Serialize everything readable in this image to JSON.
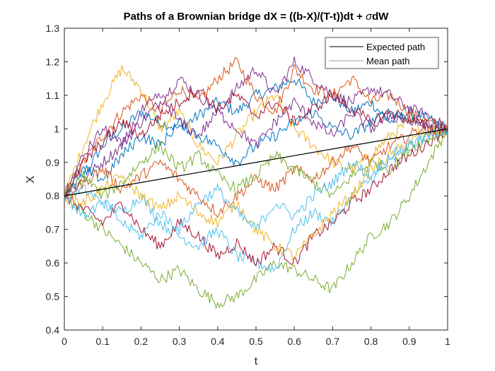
{
  "chart_data": {
    "type": "line",
    "title_prefix": "Paths of a Brownian bridge dX = ((b-X)/(T-t))dt + ",
    "title_sigma": "σ",
    "title_suffix": "dW",
    "xlabel": "t",
    "ylabel": "X",
    "xlim": [
      0,
      1
    ],
    "ylim": [
      0.4,
      1.3
    ],
    "xticks": [
      "0",
      "0.1",
      "0.2",
      "0.3",
      "0.4",
      "0.5",
      "0.6",
      "0.7",
      "0.8",
      "0.9",
      "1"
    ],
    "yticks": [
      "0.4",
      "0.5",
      "0.6",
      "0.7",
      "0.8",
      "0.9",
      "1",
      "1.1",
      "1.2",
      "1.3"
    ],
    "legend": {
      "placement": "top-right",
      "entries": [
        "Expected path",
        "Mean path"
      ]
    },
    "expected_path": {
      "x": [
        0,
        1
      ],
      "y": [
        0.8,
        1.0
      ]
    },
    "mean_path": {
      "x": [
        0,
        1
      ],
      "y": [
        0.8,
        1.0
      ]
    },
    "series_colors": [
      "#0072BD",
      "#D95319",
      "#EDB120",
      "#7E2F8E",
      "#77AC30",
      "#4DBEEE",
      "#A2142F"
    ],
    "paths": [
      {
        "x": [
          0,
          0.05,
          0.1,
          0.15,
          0.2,
          0.25,
          0.3,
          0.35,
          0.4,
          0.45,
          0.5,
          0.55,
          0.6,
          0.65,
          0.7,
          0.75,
          0.8,
          0.85,
          0.9,
          0.95,
          1
        ],
        "y": [
          0.8,
          0.86,
          0.95,
          1.0,
          1.05,
          1.02,
          1.0,
          1.04,
          1.08,
          1.05,
          1.1,
          1.12,
          1.15,
          1.08,
          1.1,
          1.05,
          1.08,
          1.02,
          1.05,
          1.03,
          1.0
        ]
      },
      {
        "x": [
          0,
          0.05,
          0.1,
          0.15,
          0.2,
          0.25,
          0.3,
          0.35,
          0.4,
          0.45,
          0.5,
          0.55,
          0.6,
          0.65,
          0.7,
          0.75,
          0.8,
          0.85,
          0.9,
          0.95,
          1
        ],
        "y": [
          0.8,
          0.9,
          0.98,
          1.05,
          1.1,
          1.05,
          1.12,
          1.08,
          1.15,
          1.2,
          1.1,
          1.05,
          1.18,
          1.12,
          1.1,
          1.15,
          1.08,
          1.1,
          1.05,
          1.02,
          1.0
        ]
      },
      {
        "x": [
          0,
          0.05,
          0.1,
          0.15,
          0.2,
          0.25,
          0.3,
          0.35,
          0.4,
          0.45,
          0.5,
          0.55,
          0.6,
          0.65,
          0.7,
          0.75,
          0.8,
          0.85,
          0.9,
          0.95,
          1
        ],
        "y": [
          0.8,
          0.95,
          1.08,
          1.18,
          1.12,
          1.0,
          1.05,
          0.95,
          0.9,
          0.98,
          1.05,
          1.1,
          1.0,
          0.95,
          0.9,
          0.88,
          0.92,
          0.98,
          1.02,
          0.99,
          1.0
        ]
      },
      {
        "x": [
          0,
          0.05,
          0.1,
          0.15,
          0.2,
          0.25,
          0.3,
          0.35,
          0.4,
          0.45,
          0.5,
          0.55,
          0.6,
          0.65,
          0.7,
          0.75,
          0.8,
          0.85,
          0.9,
          0.95,
          1
        ],
        "y": [
          0.8,
          0.85,
          0.9,
          0.95,
          1.02,
          1.08,
          1.15,
          1.1,
          1.05,
          1.12,
          1.18,
          1.1,
          1.2,
          1.15,
          1.1,
          1.08,
          1.12,
          1.1,
          1.06,
          1.04,
          1.0
        ]
      },
      {
        "x": [
          0,
          0.05,
          0.1,
          0.15,
          0.2,
          0.25,
          0.3,
          0.35,
          0.4,
          0.45,
          0.5,
          0.55,
          0.6,
          0.65,
          0.7,
          0.75,
          0.8,
          0.85,
          0.9,
          0.95,
          1
        ],
        "y": [
          0.8,
          0.75,
          0.7,
          0.65,
          0.6,
          0.55,
          0.58,
          0.52,
          0.48,
          0.5,
          0.55,
          0.6,
          0.58,
          0.55,
          0.52,
          0.6,
          0.68,
          0.72,
          0.8,
          0.9,
          1.0
        ]
      },
      {
        "x": [
          0,
          0.05,
          0.1,
          0.15,
          0.2,
          0.25,
          0.3,
          0.35,
          0.4,
          0.45,
          0.5,
          0.55,
          0.6,
          0.65,
          0.7,
          0.75,
          0.8,
          0.85,
          0.9,
          0.95,
          1
        ],
        "y": [
          0.8,
          0.82,
          0.78,
          0.75,
          0.8,
          0.72,
          0.68,
          0.65,
          0.7,
          0.62,
          0.6,
          0.58,
          0.7,
          0.75,
          0.72,
          0.8,
          0.85,
          0.9,
          0.95,
          0.98,
          1.0
        ]
      },
      {
        "x": [
          0,
          0.05,
          0.1,
          0.15,
          0.2,
          0.25,
          0.3,
          0.35,
          0.4,
          0.45,
          0.5,
          0.55,
          0.6,
          0.65,
          0.7,
          0.75,
          0.8,
          0.85,
          0.9,
          0.95,
          1
        ],
        "y": [
          0.8,
          0.76,
          0.72,
          0.78,
          0.7,
          0.65,
          0.72,
          0.68,
          0.62,
          0.66,
          0.6,
          0.65,
          0.6,
          0.68,
          0.72,
          0.78,
          0.82,
          0.88,
          0.92,
          0.96,
          1.0
        ]
      },
      {
        "x": [
          0,
          0.05,
          0.1,
          0.15,
          0.2,
          0.25,
          0.3,
          0.35,
          0.4,
          0.45,
          0.5,
          0.55,
          0.6,
          0.65,
          0.7,
          0.75,
          0.8,
          0.85,
          0.9,
          0.95,
          1
        ],
        "y": [
          0.8,
          0.88,
          0.85,
          0.92,
          0.98,
          0.95,
          1.02,
          0.98,
          0.95,
          0.9,
          0.95,
          0.98,
          1.02,
          1.05,
          1.0,
          0.98,
          1.02,
          1.05,
          1.03,
          1.01,
          1.0
        ]
      },
      {
        "x": [
          0,
          0.05,
          0.1,
          0.15,
          0.2,
          0.25,
          0.3,
          0.35,
          0.4,
          0.45,
          0.5,
          0.55,
          0.6,
          0.65,
          0.7,
          0.75,
          0.8,
          0.85,
          0.9,
          0.95,
          1
        ],
        "y": [
          0.8,
          0.84,
          0.88,
          0.82,
          0.86,
          0.9,
          0.85,
          0.8,
          0.75,
          0.8,
          0.85,
          0.82,
          0.88,
          0.85,
          0.9,
          0.95,
          0.9,
          0.95,
          0.98,
          1.02,
          1.0
        ]
      },
      {
        "x": [
          0,
          0.05,
          0.1,
          0.15,
          0.2,
          0.25,
          0.3,
          0.35,
          0.4,
          0.45,
          0.5,
          0.55,
          0.6,
          0.65,
          0.7,
          0.75,
          0.8,
          0.85,
          0.9,
          0.95,
          1
        ],
        "y": [
          0.8,
          0.78,
          0.82,
          0.86,
          0.8,
          0.76,
          0.8,
          0.75,
          0.72,
          0.78,
          0.7,
          0.65,
          0.62,
          0.68,
          0.75,
          0.8,
          0.88,
          0.92,
          0.96,
          0.99,
          1.0
        ]
      },
      {
        "x": [
          0,
          0.05,
          0.1,
          0.15,
          0.2,
          0.25,
          0.3,
          0.35,
          0.4,
          0.45,
          0.5,
          0.55,
          0.6,
          0.65,
          0.7,
          0.75,
          0.8,
          0.85,
          0.9,
          0.95,
          1
        ],
        "y": [
          0.8,
          0.92,
          1.0,
          0.95,
          1.05,
          1.1,
          1.02,
          0.98,
          1.05,
          1.0,
          0.95,
          1.02,
          1.08,
          1.02,
          0.98,
          1.05,
          1.0,
          1.04,
          1.02,
          1.01,
          1.0
        ]
      },
      {
        "x": [
          0,
          0.05,
          0.1,
          0.15,
          0.2,
          0.25,
          0.3,
          0.35,
          0.4,
          0.45,
          0.5,
          0.55,
          0.6,
          0.65,
          0.7,
          0.75,
          0.8,
          0.85,
          0.9,
          0.95,
          1
        ],
        "y": [
          0.8,
          0.86,
          0.8,
          0.84,
          0.9,
          0.95,
          0.88,
          0.92,
          0.86,
          0.82,
          0.86,
          0.92,
          0.88,
          0.84,
          0.8,
          0.86,
          0.9,
          0.88,
          0.94,
          0.97,
          1.0
        ]
      },
      {
        "x": [
          0,
          0.05,
          0.1,
          0.15,
          0.2,
          0.25,
          0.3,
          0.35,
          0.4,
          0.45,
          0.5,
          0.55,
          0.6,
          0.65,
          0.7,
          0.75,
          0.8,
          0.85,
          0.9,
          0.95,
          1
        ],
        "y": [
          0.8,
          0.74,
          0.78,
          0.72,
          0.68,
          0.75,
          0.7,
          0.78,
          0.82,
          0.75,
          0.7,
          0.78,
          0.74,
          0.8,
          0.84,
          0.9,
          0.86,
          0.92,
          0.95,
          0.98,
          1.0
        ]
      },
      {
        "x": [
          0,
          0.05,
          0.1,
          0.15,
          0.2,
          0.25,
          0.3,
          0.35,
          0.4,
          0.45,
          0.5,
          0.55,
          0.6,
          0.65,
          0.7,
          0.75,
          0.8,
          0.85,
          0.9,
          0.95,
          1
        ],
        "y": [
          0.8,
          0.9,
          0.96,
          1.02,
          0.98,
          1.04,
          1.08,
          1.12,
          1.06,
          1.1,
          1.04,
          1.08,
          1.02,
          1.06,
          1.1,
          1.06,
          1.02,
          1.05,
          1.03,
          1.0,
          1.0
        ]
      }
    ]
  }
}
